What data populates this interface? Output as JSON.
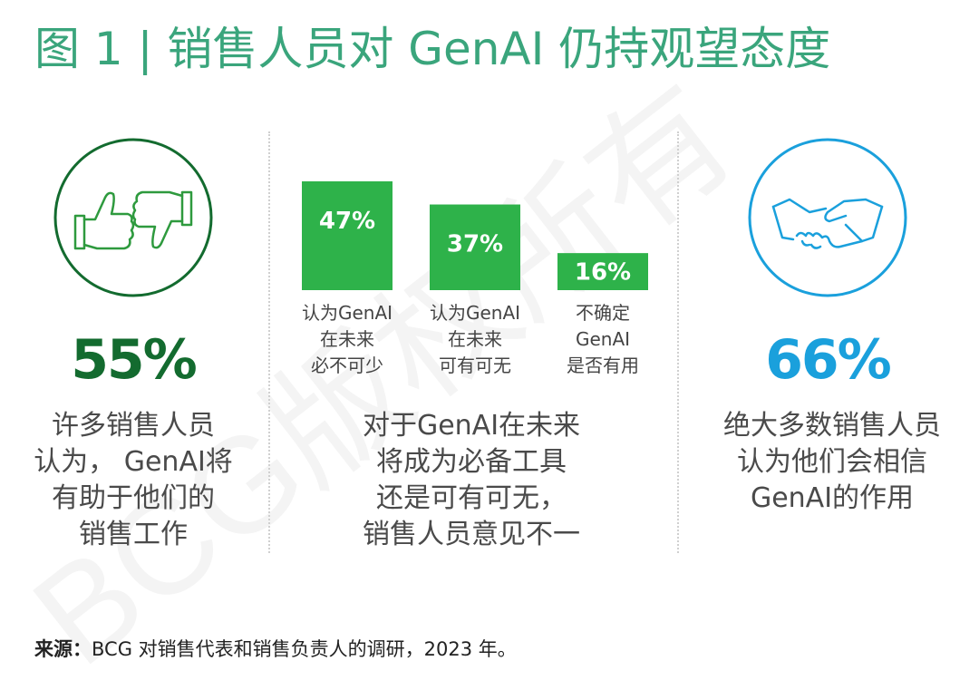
{
  "title": "图 1 | 销售人员对 GenAI 仍持观望态度",
  "watermark": "BCG版权所有",
  "left_panel": {
    "percent": "55%",
    "description": "许多销售人员\n认为， GenAI将\n有助于他们的\n销售工作",
    "icon": "thumbs-up-down-icon",
    "color": "#136b2f"
  },
  "middle_panel": {
    "description": "对于GenAI在未来\n将成为必备工具\n还是可有可无，\n销售人员意见不一"
  },
  "right_panel": {
    "percent": "66%",
    "description": "绝大多数销售人员\n认为他们会相信\nGenAI的作用",
    "icon": "handshake-icon",
    "color": "#1aa0dc"
  },
  "chart_data": {
    "type": "bar",
    "categories": [
      "认为GenAI\n在未来\n必不可少",
      "认为GenAI\n在未来\n可有可无",
      "不确定\nGenAI\n是否有用"
    ],
    "values": [
      47,
      37,
      16
    ],
    "value_labels": [
      "47%",
      "37%",
      "16%"
    ],
    "bar_color": "#2eb24a"
  },
  "source": {
    "label": "来源：",
    "text": "BCG 对销售代表和销售负责人的调研，2023 年。"
  }
}
